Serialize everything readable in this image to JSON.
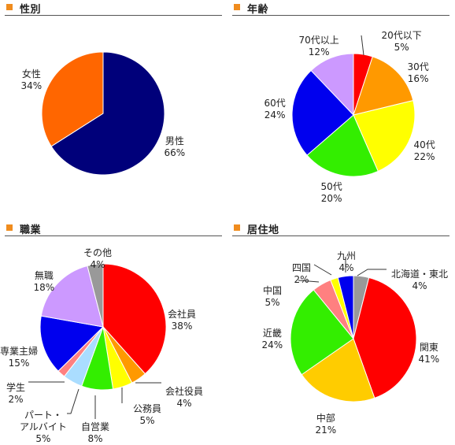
{
  "accent_color": "#f08c1e",
  "chart_data": [
    {
      "type": "pie",
      "title": "性別",
      "slices": [
        {
          "label": "男性",
          "pct_label": "66%",
          "value": 66,
          "color": "#00007a"
        },
        {
          "label": "女性",
          "pct_label": "34%",
          "value": 34,
          "color": "#ff6600"
        }
      ]
    },
    {
      "type": "pie",
      "title": "年齢",
      "slices": [
        {
          "label": "20代以下",
          "pct_label": "5%",
          "value": 5,
          "color": "#ff0000"
        },
        {
          "label": "30代",
          "pct_label": "16%",
          "value": 16,
          "color": "#ff9900"
        },
        {
          "label": "40代",
          "pct_label": "22%",
          "value": 22,
          "color": "#ffff00"
        },
        {
          "label": "50代",
          "pct_label": "20%",
          "value": 20,
          "color": "#33ee00"
        },
        {
          "label": "60代",
          "pct_label": "24%",
          "value": 24,
          "color": "#0000ee"
        },
        {
          "label": "70代以上",
          "pct_label": "12%",
          "value": 12,
          "color": "#cc99ff"
        }
      ]
    },
    {
      "type": "pie",
      "title": "職業",
      "slices": [
        {
          "label": "会社員",
          "pct_label": "38%",
          "value": 38,
          "color": "#ff0000"
        },
        {
          "label": "会社役員",
          "pct_label": "4%",
          "value": 4,
          "color": "#ff9900"
        },
        {
          "label": "公務員",
          "pct_label": "5%",
          "value": 5,
          "color": "#ffff00"
        },
        {
          "label": "自営業",
          "pct_label": "8%",
          "value": 8,
          "color": "#33ee00"
        },
        {
          "label": "パート・アルバイト",
          "label_lines": [
            "パート・",
            "アルバイト"
          ],
          "pct_label": "5%",
          "value": 5,
          "color": "#aaddff"
        },
        {
          "label": "学生",
          "pct_label": "2%",
          "value": 2,
          "color": "#ff8080"
        },
        {
          "label": "専業主婦",
          "pct_label": "15%",
          "value": 15,
          "color": "#0000ee"
        },
        {
          "label": "無職",
          "pct_label": "18%",
          "value": 18,
          "color": "#cc99ff"
        },
        {
          "label": "その他",
          "pct_label": "4%",
          "value": 4,
          "color": "#999999"
        }
      ]
    },
    {
      "type": "pie",
      "title": "居住地",
      "slices": [
        {
          "label": "北海道・東北",
          "pct_label": "4%",
          "value": 4,
          "color": "#999999"
        },
        {
          "label": "関東",
          "pct_label": "41%",
          "value": 41,
          "color": "#ff0000"
        },
        {
          "label": "中部",
          "pct_label": "21%",
          "value": 21,
          "color": "#ffcc00"
        },
        {
          "label": "近畿",
          "pct_label": "24%",
          "value": 24,
          "color": "#33ee00"
        },
        {
          "label": "中国",
          "pct_label": "5%",
          "value": 5,
          "color": "#ff8080"
        },
        {
          "label": "四国",
          "pct_label": "2%",
          "value": 2,
          "color": "#ffff00"
        },
        {
          "label": "九州",
          "pct_label": "4%",
          "value": 4,
          "color": "#0000ee"
        }
      ]
    }
  ]
}
